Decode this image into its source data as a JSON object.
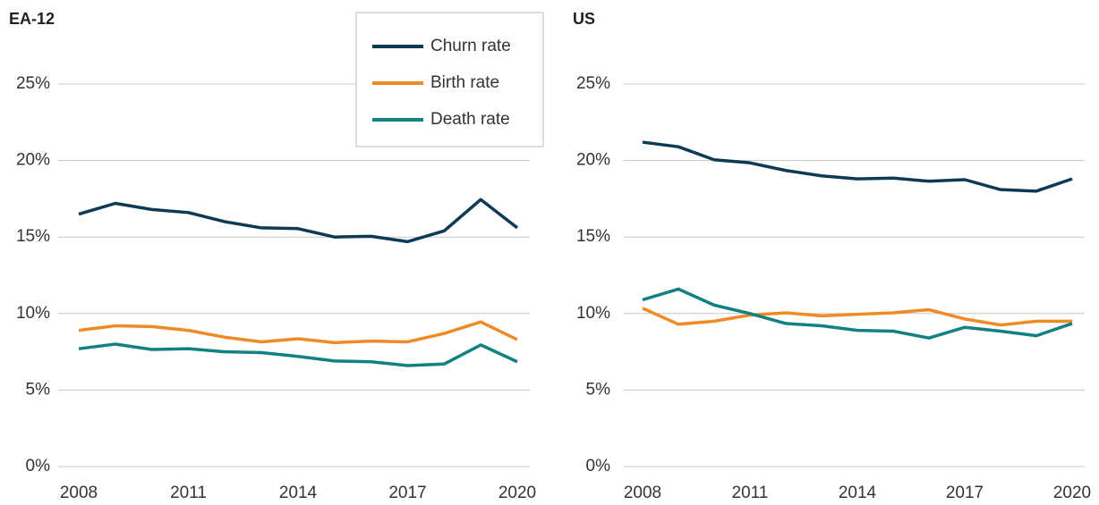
{
  "chart_data": [
    {
      "type": "line",
      "title": "EA-12",
      "x": [
        2008,
        2009,
        2010,
        2011,
        2012,
        2013,
        2014,
        2015,
        2016,
        2017,
        2018,
        2019,
        2020
      ],
      "xlim": [
        2008,
        2020
      ],
      "xticks": [
        2008,
        2011,
        2014,
        2017,
        2020
      ],
      "ylim": [
        0,
        25
      ],
      "yticks": [
        {
          "value": 0,
          "label": "0%"
        },
        {
          "value": 5,
          "label": "5%"
        },
        {
          "value": 10,
          "label": "10%"
        },
        {
          "value": 15,
          "label": "15%"
        },
        {
          "value": 20,
          "label": "20%"
        },
        {
          "value": 25,
          "label": "25%"
        }
      ],
      "grid": true,
      "legend": "top-right",
      "series": [
        {
          "name": "Churn rate",
          "color": "#0f3a55",
          "values": [
            16.5,
            17.2,
            16.8,
            16.6,
            16.0,
            15.6,
            15.55,
            15.0,
            15.05,
            14.7,
            15.4,
            17.45,
            15.6
          ]
        },
        {
          "name": "Birth rate",
          "color": "#f08a24",
          "values": [
            8.9,
            9.2,
            9.15,
            8.9,
            8.45,
            8.15,
            8.35,
            8.1,
            8.2,
            8.15,
            8.7,
            9.45,
            8.3
          ]
        },
        {
          "name": "Death rate",
          "color": "#138181",
          "values": [
            7.7,
            8.0,
            7.65,
            7.7,
            7.5,
            7.45,
            7.2,
            6.9,
            6.85,
            6.6,
            6.7,
            7.95,
            6.85
          ]
        }
      ]
    },
    {
      "type": "line",
      "title": "US",
      "x": [
        2008,
        2009,
        2010,
        2011,
        2012,
        2013,
        2014,
        2015,
        2016,
        2017,
        2018,
        2019,
        2020
      ],
      "xlim": [
        2008,
        2020
      ],
      "xticks": [
        2008,
        2011,
        2014,
        2017,
        2020
      ],
      "ylim": [
        0,
        25
      ],
      "yticks": [
        {
          "value": 0,
          "label": "0%"
        },
        {
          "value": 5,
          "label": "5%"
        },
        {
          "value": 10,
          "label": "10%"
        },
        {
          "value": 15,
          "label": "15%"
        },
        {
          "value": 20,
          "label": "20%"
        },
        {
          "value": 25,
          "label": "25%"
        }
      ],
      "grid": true,
      "series": [
        {
          "color": "#0f3a55",
          "values": [
            21.2,
            20.9,
            20.05,
            19.85,
            19.35,
            19.0,
            18.8,
            18.85,
            18.65,
            18.75,
            18.1,
            18.0,
            18.8
          ]
        },
        {
          "color": "#f08a24",
          "values": [
            10.35,
            9.3,
            9.5,
            9.9,
            10.05,
            9.85,
            9.95,
            10.05,
            10.25,
            9.65,
            9.25,
            9.5,
            9.5
          ]
        },
        {
          "color": "#138181",
          "values": [
            10.9,
            11.6,
            10.55,
            10.0,
            9.35,
            9.2,
            8.9,
            8.85,
            8.4,
            9.1,
            8.85,
            8.55,
            9.35
          ]
        }
      ]
    }
  ]
}
